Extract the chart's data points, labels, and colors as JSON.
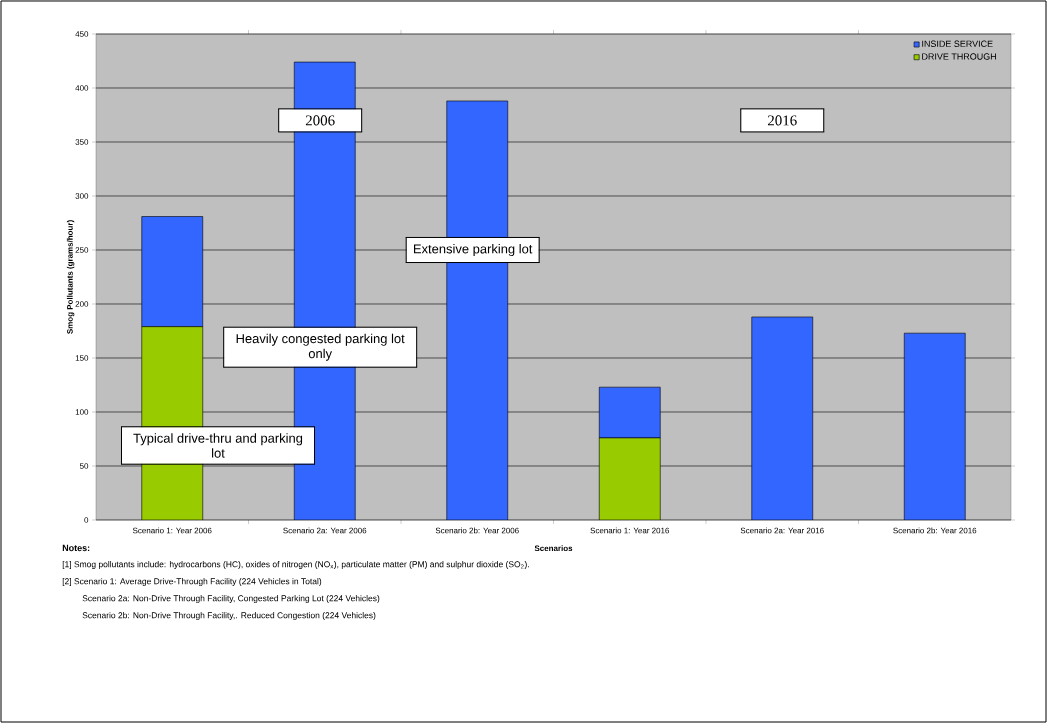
{
  "chart_data": {
    "type": "bar",
    "stacked": true,
    "xlabel": "Scenarios",
    "ylabel": "Smog Pollutants (grams/hour)",
    "categories": [
      "Scenario 1: Year 2006",
      "Scenario 2a: Year 2006",
      "Scenario 2b: Year 2006",
      "Scenario 1: Year 2016",
      "Scenario 2a: Year 2016",
      "Scenario 2b: Year 2016"
    ],
    "series": [
      {
        "name": "DRIVE THROUGH",
        "color": "#99cc00",
        "values": [
          179,
          0,
          0,
          76,
          0,
          0
        ]
      },
      {
        "name": "INSIDE SERVICE",
        "color": "#3366ff",
        "values": [
          102,
          424,
          388,
          47,
          188,
          173
        ]
      }
    ],
    "ylim": [
      0,
      450
    ],
    "yticks": [
      0,
      50,
      100,
      150,
      200,
      250,
      300,
      350,
      400,
      450
    ],
    "grid": "y",
    "legend": "top right",
    "annotations": [
      "2006",
      "2016",
      "Extensive parking lot",
      "Heavily congested parking lot only",
      "Typical drive-thru and parking lot",
      "Notes:",
      "[1]  Smog pollutants include: hydrocarbons (HC), oxides of nitrogen (NO$_{x}$), particulate matter (PM) and sulphur dioxide (SO$_{2}$).",
      "[2]  Scenario 1: Average Drive-Through Facility (224 Vehicles in Total)",
      "Scenario 2a:  Non-Drive Through Facility, Congested Parking Lot (224 Vehicles)",
      "Scenario 2b:  Non-Drive Through Facility,. Reduced Congestion (224 Vehicles)"
    ]
  }
}
